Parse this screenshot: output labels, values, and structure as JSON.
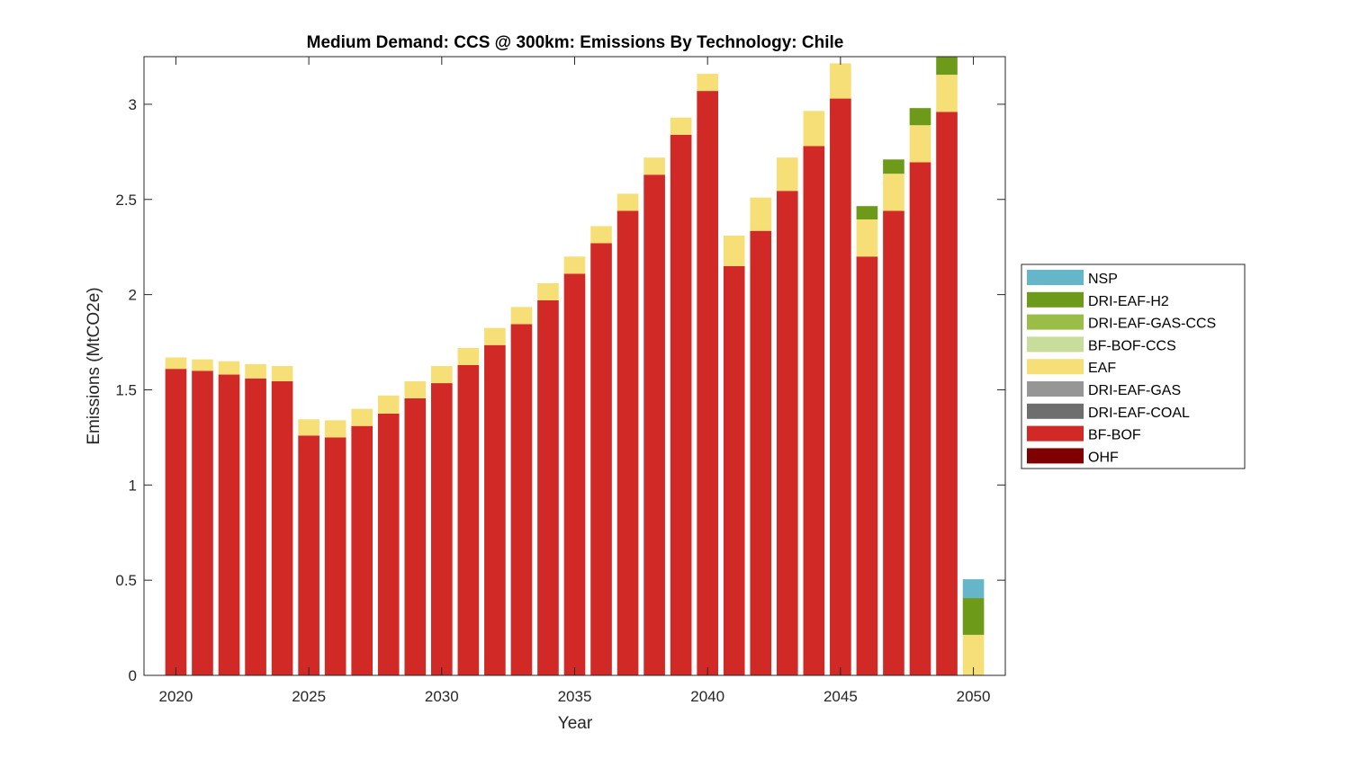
{
  "chart_data": {
    "type": "bar",
    "stacked": true,
    "title": "Medium Demand: CCS @ 300km: Emissions By Technology: Chile",
    "xlabel": "Year",
    "ylabel": "Emissions (MtCO2e)",
    "ylim": [
      0,
      3.25
    ],
    "xlim": [
      2018.8,
      2051.2
    ],
    "yticks": [
      0,
      0.5,
      1,
      1.5,
      2,
      2.5,
      3
    ],
    "ytick_labels": [
      "0",
      "0.5",
      "1",
      "1.5",
      "2",
      "2.5",
      "3"
    ],
    "xticks": [
      2020,
      2025,
      2030,
      2035,
      2040,
      2045,
      2050
    ],
    "xtick_labels": [
      "2020",
      "2025",
      "2030",
      "2035",
      "2040",
      "2045",
      "2050"
    ],
    "grid": false,
    "legend_position": "right",
    "categories": [
      2020,
      2021,
      2022,
      2023,
      2024,
      2025,
      2026,
      2027,
      2028,
      2029,
      2030,
      2031,
      2032,
      2033,
      2034,
      2035,
      2036,
      2037,
      2038,
      2039,
      2040,
      2041,
      2042,
      2043,
      2044,
      2045,
      2046,
      2047,
      2048,
      2049,
      2050
    ],
    "series": [
      {
        "name": "OHF",
        "color": "#7e0000",
        "values": [
          0,
          0,
          0,
          0,
          0,
          0,
          0,
          0,
          0,
          0,
          0,
          0,
          0,
          0,
          0,
          0,
          0,
          0,
          0,
          0,
          0,
          0,
          0,
          0,
          0,
          0,
          0,
          0,
          0,
          0,
          0
        ]
      },
      {
        "name": "BF-BOF",
        "color": "#d12925",
        "values": [
          1.61,
          1.6,
          1.58,
          1.56,
          1.545,
          1.26,
          1.25,
          1.31,
          1.375,
          1.455,
          1.535,
          1.63,
          1.735,
          1.845,
          1.97,
          2.11,
          2.27,
          2.44,
          2.63,
          2.84,
          3.07,
          2.15,
          2.335,
          2.545,
          2.78,
          3.03,
          2.2,
          2.44,
          2.695,
          2.96,
          0
        ]
      },
      {
        "name": "DRI-EAF-COAL",
        "color": "#6e6e6e",
        "values": [
          0,
          0,
          0,
          0,
          0,
          0,
          0,
          0,
          0,
          0,
          0,
          0,
          0,
          0,
          0,
          0,
          0,
          0,
          0,
          0,
          0,
          0,
          0,
          0,
          0,
          0,
          0,
          0,
          0,
          0,
          0
        ]
      },
      {
        "name": "DRI-EAF-GAS",
        "color": "#969696",
        "values": [
          0,
          0,
          0,
          0,
          0,
          0,
          0,
          0,
          0,
          0,
          0,
          0,
          0,
          0,
          0,
          0,
          0,
          0,
          0,
          0,
          0,
          0,
          0,
          0,
          0,
          0,
          0,
          0,
          0,
          0,
          0
        ]
      },
      {
        "name": "EAF",
        "color": "#f7df78",
        "values": [
          0.06,
          0.06,
          0.07,
          0.075,
          0.08,
          0.085,
          0.09,
          0.09,
          0.095,
          0.09,
          0.09,
          0.09,
          0.09,
          0.09,
          0.09,
          0.09,
          0.09,
          0.09,
          0.09,
          0.09,
          0.09,
          0.16,
          0.175,
          0.175,
          0.185,
          0.185,
          0.195,
          0.195,
          0.195,
          0.195,
          0.213
        ]
      },
      {
        "name": "BF-BOF-CCS",
        "color": "#c8dd9b",
        "values": [
          0,
          0,
          0,
          0,
          0,
          0,
          0,
          0,
          0,
          0,
          0,
          0,
          0,
          0,
          0,
          0,
          0,
          0,
          0,
          0,
          0,
          0,
          0,
          0,
          0,
          0,
          0,
          0,
          0,
          0,
          0
        ]
      },
      {
        "name": "DRI-EAF-GAS-CCS",
        "color": "#99bd46",
        "values": [
          0,
          0,
          0,
          0,
          0,
          0,
          0,
          0,
          0,
          0,
          0,
          0,
          0,
          0,
          0,
          0,
          0,
          0,
          0,
          0,
          0,
          0,
          0,
          0,
          0,
          0,
          0,
          0,
          0,
          0,
          0
        ]
      },
      {
        "name": "DRI-EAF-H2",
        "color": "#6e9a1a",
        "values": [
          0,
          0,
          0,
          0,
          0,
          0,
          0,
          0,
          0,
          0,
          0,
          0,
          0,
          0,
          0,
          0,
          0,
          0,
          0,
          0,
          0,
          0,
          0,
          0,
          0,
          0,
          0.07,
          0.075,
          0.09,
          0.1,
          0.193
        ]
      },
      {
        "name": "NSP",
        "color": "#65b6c9",
        "values": [
          0,
          0,
          0,
          0,
          0,
          0,
          0,
          0,
          0,
          0,
          0,
          0,
          0,
          0,
          0,
          0,
          0,
          0,
          0,
          0,
          0,
          0,
          0,
          0,
          0,
          0,
          0,
          0,
          0,
          0,
          0.099
        ]
      }
    ],
    "legend_order": [
      "NSP",
      "DRI-EAF-H2",
      "DRI-EAF-GAS-CCS",
      "BF-BOF-CCS",
      "EAF",
      "DRI-EAF-GAS",
      "DRI-EAF-COAL",
      "BF-BOF",
      "OHF"
    ]
  }
}
